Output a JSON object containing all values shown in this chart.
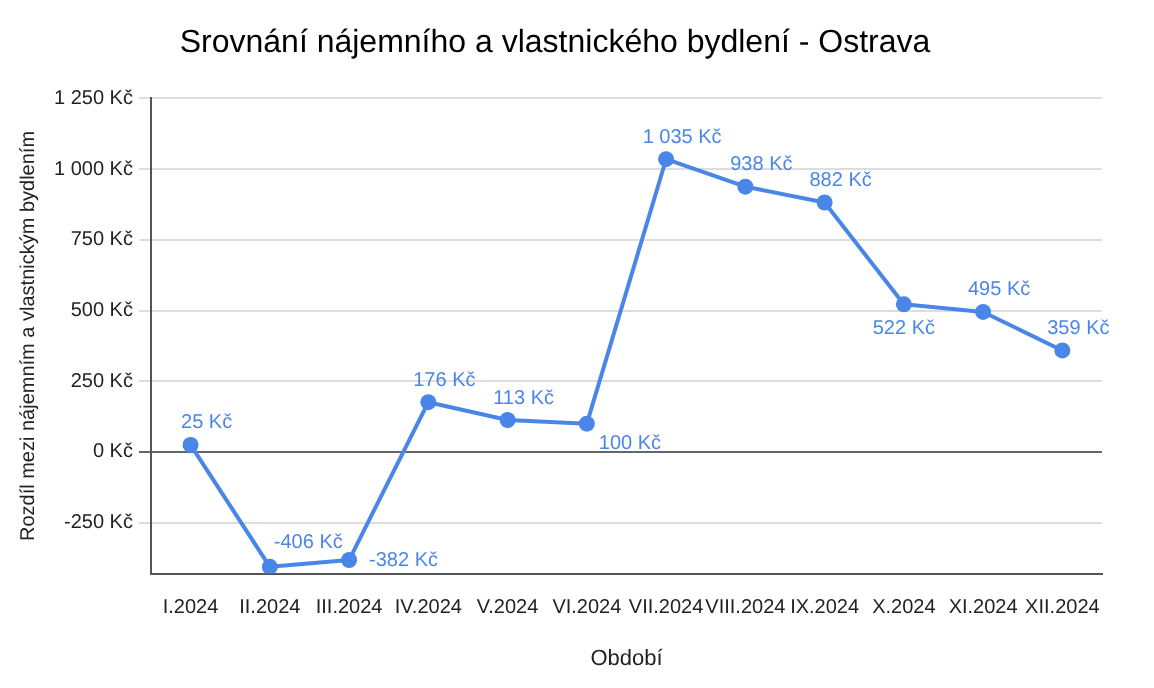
{
  "chart_data": {
    "type": "line",
    "title": "Srovnání nájemního a vlastnického bydlení - Ostrava",
    "xlabel": "Období",
    "ylabel": "Rozdíl mezi nájemním a vlastnickým bydlením",
    "categories": [
      "I.2024",
      "II.2024",
      "III.2024",
      "IV.2024",
      "V.2024",
      "VI.2024",
      "VII.2024",
      "VIII.2024",
      "IX.2024",
      "X.2024",
      "XI.2024",
      "XII.2024"
    ],
    "series": [
      {
        "color": "#4a86e8",
        "values": [
          25,
          -406,
          -382,
          176,
          113,
          100,
          1035,
          938,
          882,
          522,
          495,
          359
        ],
        "value_labels": [
          "25 Kč",
          "-406 Kč",
          "-382 Kč",
          "176 Kč",
          "113 Kč",
          "100 Kč",
          "1 035 Kč",
          "938 Kč",
          "882 Kč",
          "522 Kč",
          "495 Kč",
          "359 Kč"
        ]
      }
    ],
    "ylim": [
      -430,
      1250
    ],
    "yticks": [
      {
        "value": -250,
        "label": "-250 Kč"
      },
      {
        "value": 0,
        "label": "0 Kč"
      },
      {
        "value": 250,
        "label": "250 Kč"
      },
      {
        "value": 500,
        "label": "500 Kč"
      },
      {
        "value": 750,
        "label": "750 Kč"
      },
      {
        "value": 1000,
        "label": "1 000 Kč"
      },
      {
        "value": 1250,
        "label": "1 250 Kč"
      }
    ],
    "grid": "y",
    "marker": "circle",
    "line_style": "solid",
    "legend": false
  }
}
